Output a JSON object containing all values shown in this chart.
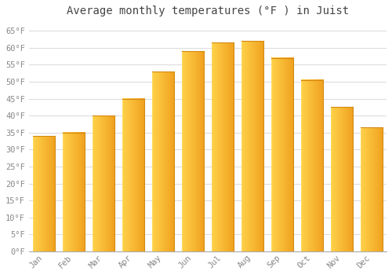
{
  "title": "Average monthly temperatures (°F ) in Juist",
  "months": [
    "Jan",
    "Feb",
    "Mar",
    "Apr",
    "May",
    "Jun",
    "Jul",
    "Aug",
    "Sep",
    "Oct",
    "Nov",
    "Dec"
  ],
  "values": [
    34,
    35,
    40,
    45,
    53,
    59,
    61.5,
    62,
    57,
    50.5,
    42.5,
    36.5
  ],
  "bar_color_left": "#FFD04A",
  "bar_color_right": "#F0A020",
  "background_color": "#FFFFFF",
  "grid_color": "#DDDDDD",
  "title_fontsize": 10,
  "tick_fontsize": 7.5,
  "ylim": [
    0,
    68
  ],
  "yticks": [
    0,
    5,
    10,
    15,
    20,
    25,
    30,
    35,
    40,
    45,
    50,
    55,
    60,
    65
  ],
  "ytick_labels": [
    "0°F",
    "5°F",
    "10°F",
    "15°F",
    "20°F",
    "25°F",
    "30°F",
    "35°F",
    "40°F",
    "45°F",
    "50°F",
    "55°F",
    "60°F",
    "65°F"
  ]
}
